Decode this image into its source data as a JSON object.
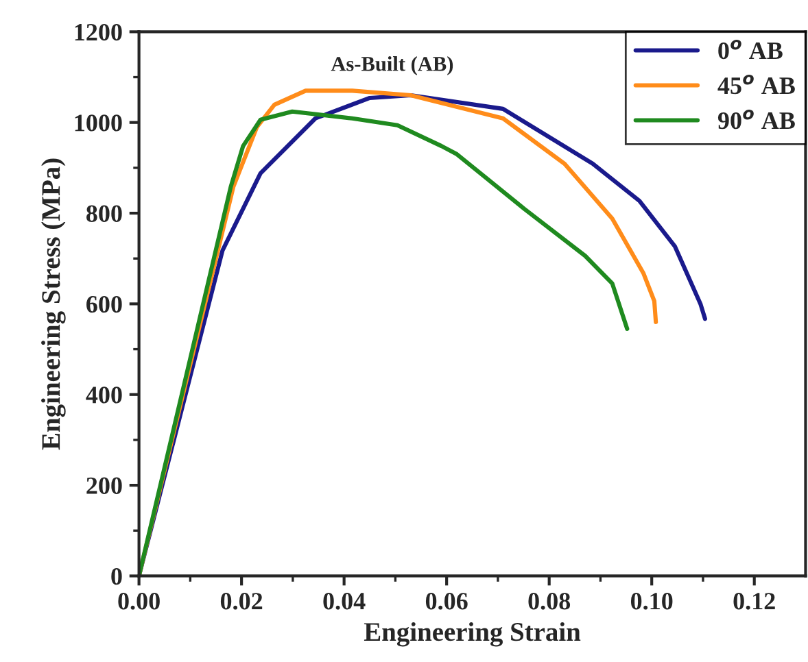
{
  "chart_data": {
    "type": "line",
    "title": "As-Built (AB)",
    "xlabel": "Engineering Strain",
    "ylabel": "Engineering Stress (MPa)",
    "xlim": [
      0,
      0.13
    ],
    "xticks": [
      {
        "value": 0,
        "label": "0.00"
      },
      {
        "value": 0.02,
        "label": "0.02"
      },
      {
        "value": 0.04,
        "label": "0.04"
      },
      {
        "value": 0.06,
        "label": "0.06"
      },
      {
        "value": 0.08,
        "label": "0.08"
      },
      {
        "value": 0.1,
        "label": "0.10"
      },
      {
        "value": 0.12,
        "label": "0.12"
      }
    ],
    "ylim": [
      0,
      1200
    ],
    "yticks": [
      0,
      200,
      400,
      600,
      800,
      1000,
      1200
    ],
    "grid": false,
    "legend": "top right",
    "marker": "none",
    "line_style": "solid",
    "series": [
      {
        "name": "0$^{o}$ AB",
        "color": "#1a1a8c",
        "x": [
          0,
          0.0163,
          0.0237,
          0.0344,
          0.045,
          0.053,
          0.071,
          0.0885,
          0.0976,
          0.1045,
          0.1095,
          0.1104
        ],
        "values": [
          0,
          718,
          888,
          1009,
          1054,
          1060,
          1030,
          909,
          827,
          727,
          600,
          567
        ]
      },
      {
        "name": "45$^{o}$ AB",
        "color": "#ff8c1a",
        "x": [
          0,
          0.0184,
          0.023,
          0.0264,
          0.0325,
          0.0416,
          0.053,
          0.071,
          0.083,
          0.0923,
          0.0984,
          0.1005,
          0.1008
        ],
        "values": [
          0,
          858,
          990,
          1039,
          1070,
          1070,
          1060,
          1009,
          909,
          788,
          667,
          606,
          560
        ]
      },
      {
        "name": "90$^{o}$ AB",
        "color": "#1f8a1f",
        "x": [
          0,
          0.0179,
          0.0203,
          0.0237,
          0.0299,
          0.0416,
          0.0504,
          0.059,
          0.062,
          0.0752,
          0.087,
          0.0923,
          0.0952
        ],
        "values": [
          0,
          858,
          948,
          1006,
          1024,
          1009,
          994,
          948,
          930,
          809,
          706,
          645,
          545
        ]
      }
    ]
  }
}
